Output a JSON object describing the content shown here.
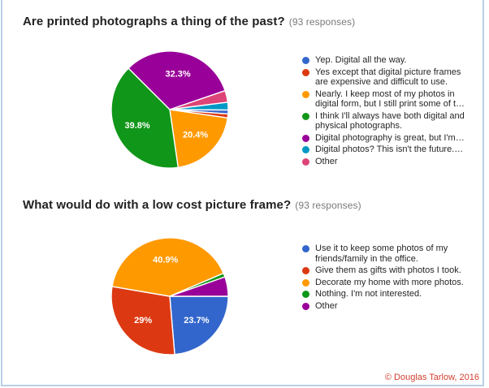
{
  "page": {
    "background": "#ffffff",
    "frame_border_color": "#b9cfe8"
  },
  "footer": {
    "text": "© Douglas Tarlow, 2016",
    "color": "#d23f31"
  },
  "chart_data": [
    {
      "type": "pie",
      "title": "Are printed photographs a thing of the past?",
      "responses_note": "(93 responses)",
      "total_responses": 93,
      "legend_position": "right",
      "slices": [
        {
          "label": "Yep. Digital all the way.",
          "color": "#3366cc",
          "votes": 1,
          "percent": 1.1,
          "percent_label": null
        },
        {
          "label": "Yes except that digital picture frames are expensive and difficult to use.",
          "color": "#dc3912",
          "votes": 1,
          "percent": 1.1,
          "percent_label": null
        },
        {
          "label": "Nearly. I keep most of my photos in digital form, but I still print some of t…",
          "color": "#ff9900",
          "votes": 19,
          "percent": 20.4,
          "percent_label": "20.4%"
        },
        {
          "label": "I think I'll always have both digital and physical photographs.",
          "color": "#109618",
          "votes": 37,
          "percent": 39.8,
          "percent_label": "39.8%"
        },
        {
          "label": "Digital photography is great, but I'm…",
          "color": "#990099",
          "votes": 30,
          "percent": 32.3,
          "percent_label": "32.3%"
        },
        {
          "label": "Digital photos? This isn't the future.…",
          "color": "#0099c6",
          "votes": 2,
          "percent": 2.2,
          "percent_label": null
        },
        {
          "label": "Other",
          "color": "#dd4477",
          "votes": 3,
          "percent": 3.2,
          "percent_label": null
        }
      ],
      "draw": {
        "start_deg": 315,
        "order": [
          4,
          6,
          5,
          0,
          1,
          2,
          3
        ]
      }
    },
    {
      "type": "pie",
      "title": "What would do with a low cost picture frame?",
      "responses_note": "(93 responses)",
      "total_responses": 93,
      "legend_position": "right",
      "slices": [
        {
          "label": "Use it to keep some photos of my friends/family in the office.",
          "color": "#3366cc",
          "votes": 22,
          "percent": 23.7,
          "percent_label": "23.7%"
        },
        {
          "label": "Give them as gifts with photos I took.",
          "color": "#dc3912",
          "votes": 27,
          "percent": 29,
          "percent_label": "29%"
        },
        {
          "label": "Decorate my home with more photos.",
          "color": "#ff9900",
          "votes": 38,
          "percent": 40.9,
          "percent_label": "40.9%"
        },
        {
          "label": "Nothing. I'm not interested.",
          "color": "#109618",
          "votes": 1,
          "percent": 1.1,
          "percent_label": null
        },
        {
          "label": "Other",
          "color": "#990099",
          "votes": 5,
          "percent": 5.4,
          "percent_label": null
        }
      ],
      "draw": {
        "start_deg": 90,
        "order": [
          0,
          1,
          2,
          3,
          4
        ]
      }
    }
  ]
}
